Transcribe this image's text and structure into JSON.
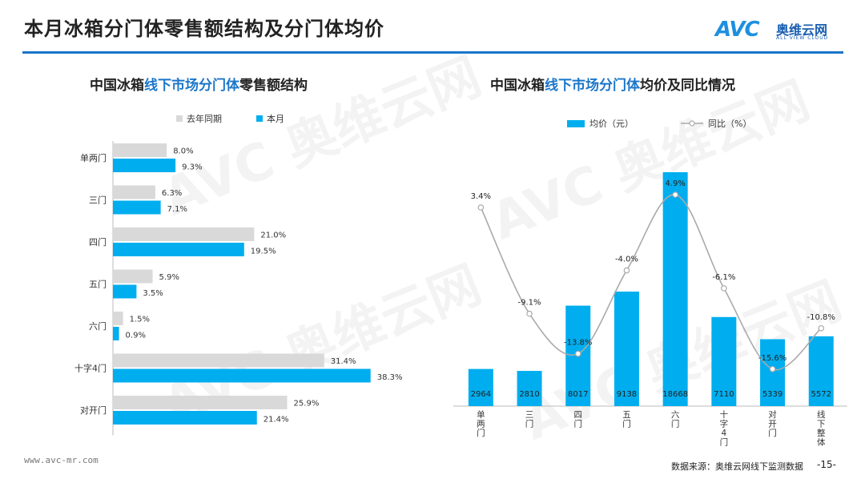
{
  "header": {
    "title": "本月冰箱分门体零售额结构及分门体均价",
    "logo_mark": "AVC",
    "logo_cn": "奥维云网",
    "logo_en": "ALL VIEW CLOUD"
  },
  "colors": {
    "accent": "#1b76c9",
    "bar_current": "#00aeef",
    "bar_prior": "#d9d9d9",
    "line": "#aaaaaa"
  },
  "footer": {
    "url": "www.avc-mr.com",
    "source": "数据来源：奥维云网线下监测数据",
    "page": "-15-"
  },
  "chart_data": [
    {
      "type": "bar",
      "orientation": "horizontal",
      "title_parts": [
        "中国冰箱",
        "线下市场分门体",
        "零售额结构"
      ],
      "categories": [
        "单两门",
        "三门",
        "四门",
        "五门",
        "六门",
        "十字4门",
        "对开门"
      ],
      "series": [
        {
          "name": "去年同期",
          "values": [
            8.0,
            6.3,
            21.0,
            5.9,
            1.5,
            31.4,
            25.9
          ],
          "labels": [
            "8.0%",
            "6.3%",
            "21.0%",
            "5.9%",
            "1.5%",
            "31.4%",
            "25.9%"
          ]
        },
        {
          "name": "本月",
          "values": [
            9.3,
            7.1,
            19.5,
            3.5,
            0.9,
            38.3,
            21.4
          ],
          "labels": [
            "9.3%",
            "7.1%",
            "19.5%",
            "3.5%",
            "0.9%",
            "38.3%",
            "21.4%"
          ]
        }
      ],
      "legend": "top"
    },
    {
      "type": "bar",
      "title_parts": [
        "中国冰箱",
        "线下市场分门体",
        "均价及同比情况"
      ],
      "categories": [
        "单两门",
        "三门",
        "四门",
        "五门",
        "六门",
        "十字4门",
        "对开门",
        "线下整体"
      ],
      "bar_series": {
        "name": "均价（元）",
        "values": [
          2964,
          2810,
          8017,
          9138,
          18668,
          7110,
          5339,
          5572
        ]
      },
      "line_series": {
        "name": "同比（%）",
        "values": [
          3.4,
          -9.1,
          -13.8,
          -4.0,
          4.9,
          -6.1,
          -15.6,
          -10.8
        ],
        "labels": [
          "3.4%",
          "-9.1%",
          "-13.8%",
          "-4.0%",
          "4.9%",
          "-6.1%",
          "-15.6%",
          "-10.8%"
        ]
      },
      "legend": "top"
    }
  ]
}
